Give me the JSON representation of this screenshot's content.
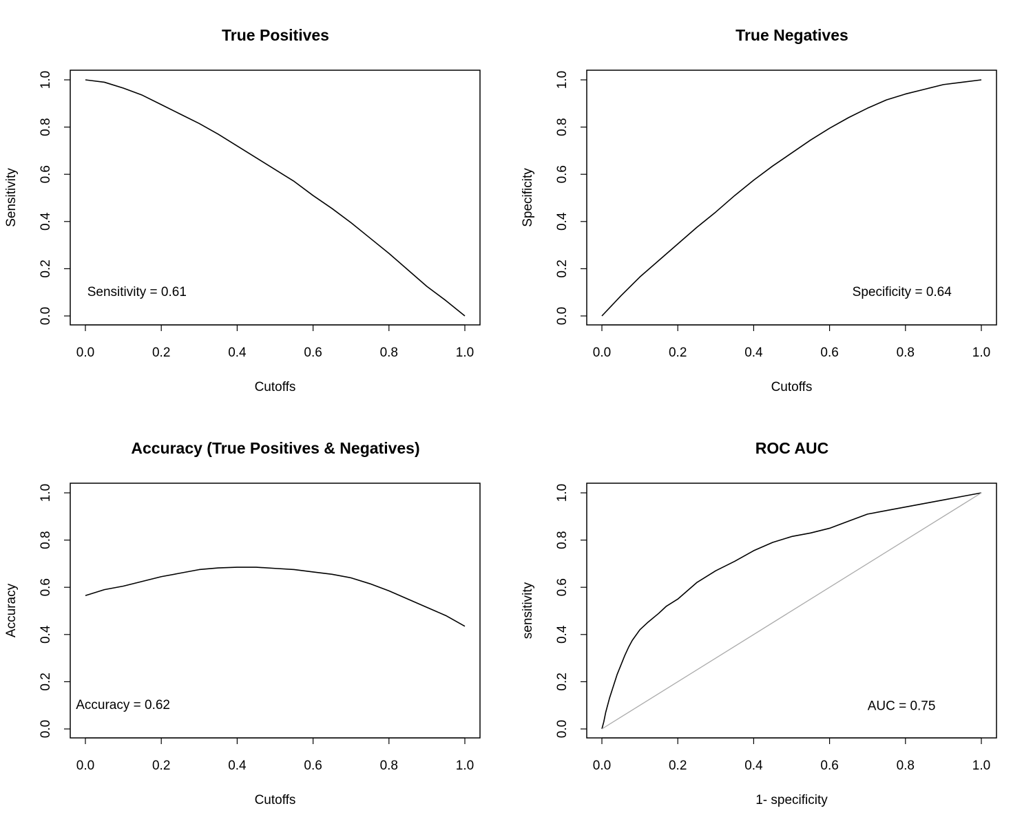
{
  "chart_data": [
    {
      "type": "line",
      "title": "True Positives",
      "xlabel": "Cutoffs",
      "ylabel": "Sensitivity",
      "xlim": [
        0,
        1
      ],
      "ylim": [
        0,
        1
      ],
      "x_ticks": [
        "0.0",
        "0.2",
        "0.4",
        "0.6",
        "0.8",
        "1.0"
      ],
      "y_ticks": [
        "0.0",
        "0.2",
        "0.4",
        "0.6",
        "0.8",
        "1.0"
      ],
      "annotation": {
        "text": "Sensitivity = 0.61",
        "x": 0.005,
        "y": 0.105
      },
      "series": [
        {
          "color": "#000000",
          "x": [
            0.0,
            0.05,
            0.1,
            0.15,
            0.2,
            0.25,
            0.3,
            0.35,
            0.4,
            0.45,
            0.5,
            0.55,
            0.6,
            0.65,
            0.7,
            0.75,
            0.8,
            0.85,
            0.9,
            0.95,
            1.0
          ],
          "y": [
            1.0,
            0.99,
            0.965,
            0.935,
            0.895,
            0.855,
            0.815,
            0.77,
            0.72,
            0.67,
            0.62,
            0.57,
            0.51,
            0.455,
            0.395,
            0.33,
            0.265,
            0.195,
            0.125,
            0.065,
            0.0
          ]
        }
      ],
      "grid": false
    },
    {
      "type": "line",
      "title": "True Negatives",
      "xlabel": "Cutoffs",
      "ylabel": "Specificity",
      "xlim": [
        0,
        1
      ],
      "ylim": [
        0,
        1
      ],
      "x_ticks": [
        "0.0",
        "0.2",
        "0.4",
        "0.6",
        "0.8",
        "1.0"
      ],
      "y_ticks": [
        "0.0",
        "0.2",
        "0.4",
        "0.6",
        "0.8",
        "1.0"
      ],
      "annotation": {
        "text": "Specificity = 0.64",
        "x": 0.66,
        "y": 0.105
      },
      "series": [
        {
          "color": "#000000",
          "x": [
            0.0,
            0.05,
            0.1,
            0.15,
            0.2,
            0.25,
            0.3,
            0.35,
            0.4,
            0.45,
            0.5,
            0.55,
            0.6,
            0.65,
            0.7,
            0.75,
            0.8,
            0.85,
            0.9,
            0.95,
            1.0
          ],
          "y": [
            0.0,
            0.085,
            0.165,
            0.235,
            0.305,
            0.375,
            0.44,
            0.51,
            0.575,
            0.635,
            0.69,
            0.745,
            0.795,
            0.84,
            0.88,
            0.915,
            0.94,
            0.96,
            0.98,
            0.99,
            1.0
          ]
        }
      ],
      "grid": false
    },
    {
      "type": "line",
      "title": "Accuracy (True Positives & Negatives)",
      "xlabel": "Cutoffs",
      "ylabel": "Accuracy",
      "xlim": [
        0,
        1
      ],
      "ylim": [
        0,
        1
      ],
      "x_ticks": [
        "0.0",
        "0.2",
        "0.4",
        "0.6",
        "0.8",
        "1.0"
      ],
      "y_ticks": [
        "0.0",
        "0.2",
        "0.4",
        "0.6",
        "0.8",
        "1.0"
      ],
      "annotation": {
        "text": "Accuracy = 0.62",
        "x": -0.025,
        "y": 0.105
      },
      "series": [
        {
          "color": "#000000",
          "x": [
            0.0,
            0.05,
            0.1,
            0.15,
            0.2,
            0.25,
            0.3,
            0.35,
            0.4,
            0.45,
            0.5,
            0.55,
            0.6,
            0.65,
            0.7,
            0.75,
            0.8,
            0.85,
            0.9,
            0.95,
            1.0
          ],
          "y": [
            0.565,
            0.59,
            0.605,
            0.625,
            0.645,
            0.66,
            0.675,
            0.682,
            0.685,
            0.685,
            0.68,
            0.675,
            0.665,
            0.655,
            0.64,
            0.615,
            0.585,
            0.55,
            0.515,
            0.48,
            0.435
          ]
        }
      ],
      "grid": false
    },
    {
      "type": "line",
      "title": "ROC AUC",
      "xlabel": "1- specificity",
      "ylabel": "sensitivity",
      "xlim": [
        0,
        1
      ],
      "ylim": [
        0,
        1
      ],
      "x_ticks": [
        "0.0",
        "0.2",
        "0.4",
        "0.6",
        "0.8",
        "1.0"
      ],
      "y_ticks": [
        "0.0",
        "0.2",
        "0.4",
        "0.6",
        "0.8",
        "1.0"
      ],
      "annotation": {
        "text": "AUC = 0.75",
        "x": 0.7,
        "y": 0.1
      },
      "series": [
        {
          "color": "#000000",
          "x": [
            0.0,
            0.005,
            0.01,
            0.02,
            0.03,
            0.04,
            0.05,
            0.06,
            0.07,
            0.08,
            0.1,
            0.12,
            0.15,
            0.17,
            0.2,
            0.25,
            0.3,
            0.35,
            0.4,
            0.45,
            0.5,
            0.55,
            0.6,
            0.65,
            0.7,
            0.75,
            0.8,
            0.85,
            0.9,
            0.95,
            1.0
          ],
          "y": [
            0.0,
            0.03,
            0.07,
            0.13,
            0.18,
            0.23,
            0.27,
            0.31,
            0.345,
            0.375,
            0.42,
            0.45,
            0.49,
            0.52,
            0.55,
            0.62,
            0.67,
            0.71,
            0.755,
            0.79,
            0.815,
            0.83,
            0.85,
            0.88,
            0.91,
            0.925,
            0.94,
            0.955,
            0.97,
            0.985,
            1.0
          ]
        },
        {
          "color": "#aaaaaa",
          "x": [
            0,
            1
          ],
          "y": [
            0,
            1
          ]
        }
      ],
      "grid": false
    }
  ]
}
